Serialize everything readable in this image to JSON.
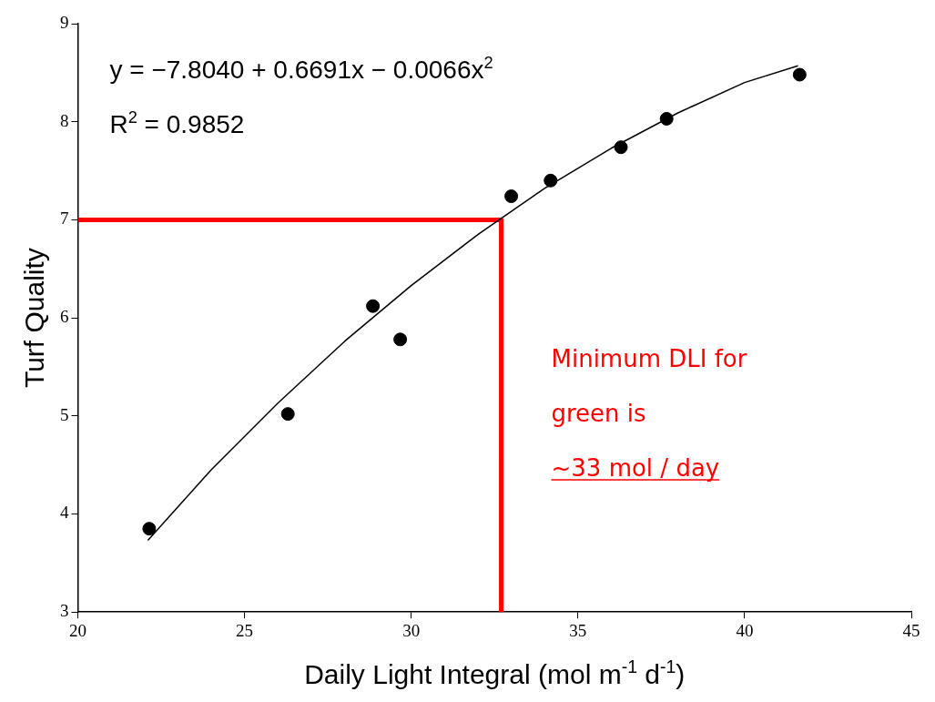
{
  "chart_data": {
    "type": "scatter",
    "xlabel": "Daily Light Integral (mol m$^{-1}$ d$^{-1}$)",
    "ylabel": "Turf Quality",
    "xlim": [
      20,
      45
    ],
    "xticks": [
      20,
      25,
      30,
      35,
      40,
      45
    ],
    "ylim": [
      3,
      9
    ],
    "yticks": [
      3,
      4,
      5,
      6,
      7,
      8,
      9
    ],
    "grid": false,
    "legend": false,
    "marker": "circle",
    "series": [
      {
        "color": "#000000",
        "x": [
          22.14,
          26.3,
          28.85,
          29.67,
          33.0,
          34.18,
          36.29,
          37.66,
          41.65
        ],
        "values": [
          3.85,
          5.02,
          6.12,
          5.78,
          7.24,
          7.4,
          7.74,
          8.03,
          8.48
        ]
      },
      {
        "type": "line",
        "color": "#000000",
        "marker": "none",
        "x": [
          22.1,
          24,
          26,
          28,
          30,
          32,
          34,
          36,
          38,
          40,
          41.6
        ],
        "values": [
          3.73,
          4.45,
          5.13,
          5.76,
          6.33,
          6.85,
          7.32,
          7.73,
          8.09,
          8.4,
          8.57
        ]
      },
      {
        "type": "line",
        "color": "#ff0000",
        "marker": "none",
        "x": [
          20,
          32.7,
          32.7
        ],
        "values": [
          7,
          7,
          3
        ]
      }
    ],
    "annotations": [
      "y = −7.8040 + 0.6691x − 0.0066x$^{2}$",
      "R$^{2}$ = 0.9852",
      "Minimum DLI for",
      "green is",
      "~33 mol / day"
    ]
  }
}
